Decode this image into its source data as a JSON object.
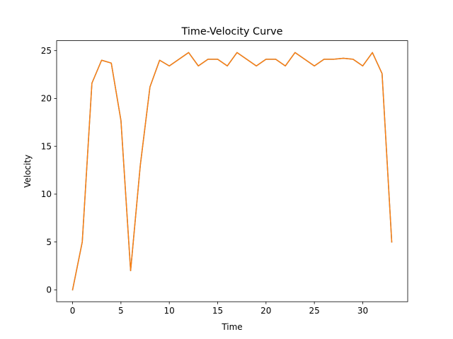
{
  "chart_data": {
    "type": "line",
    "title": "Time-Velocity Curve",
    "xlabel": "Time",
    "ylabel": "Velocity",
    "xlim": [
      -1.65,
      34.65
    ],
    "ylim": [
      -1.24,
      26.04
    ],
    "xticks": [
      0,
      5,
      10,
      15,
      20,
      25,
      30
    ],
    "yticks": [
      0,
      5,
      10,
      15,
      20,
      25
    ],
    "grid": false,
    "x": [
      0,
      1,
      2,
      3,
      4,
      5,
      6,
      7,
      8,
      9,
      10,
      11,
      12,
      13,
      14,
      15,
      16,
      17,
      18,
      19,
      20,
      21,
      22,
      23,
      24,
      25,
      26,
      27,
      28,
      29,
      30,
      31,
      32,
      33
    ],
    "series": [
      {
        "color": "#1f77b4",
        "values": [
          0,
          5,
          21.6,
          24,
          23.7,
          17.7,
          2,
          13,
          21.2,
          24,
          23.4,
          24.1,
          24.8,
          23.4,
          24.1,
          24.1,
          23.4,
          24.8,
          24.1,
          23.4,
          24.1,
          24.1,
          23.4,
          24.8,
          24.1,
          23.4,
          24.1,
          24.1,
          24.2,
          24.1,
          23.4,
          24.8,
          22.6,
          5
        ]
      },
      {
        "color": "#ff7f0e",
        "values": [
          0,
          5,
          21.6,
          24,
          23.7,
          17.7,
          2,
          13,
          21.2,
          24,
          23.4,
          24.1,
          24.8,
          23.4,
          24.1,
          24.1,
          23.4,
          24.8,
          24.1,
          23.4,
          24.1,
          24.1,
          23.4,
          24.8,
          24.1,
          23.4,
          24.1,
          24.1,
          24.2,
          24.1,
          23.4,
          24.8,
          22.6,
          5
        ]
      }
    ]
  }
}
